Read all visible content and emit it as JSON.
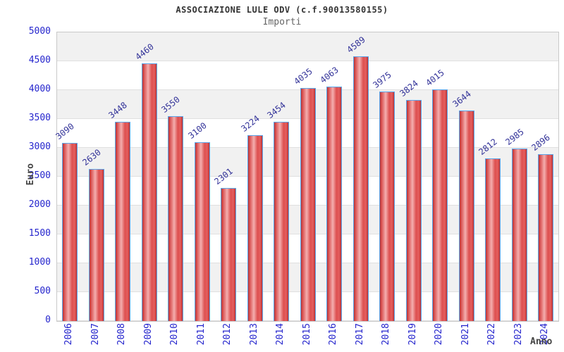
{
  "header": {
    "title": "ASSOCIAZIONE LULE ODV (c.f.90013580155)",
    "subtitle": "Importi"
  },
  "chart_data": {
    "type": "bar",
    "title": "ASSOCIAZIONE LULE ODV (c.f.90013580155)",
    "subtitle": "Importi",
    "xlabel": "Anno",
    "ylabel": "Euro",
    "categories": [
      "2006",
      "2007",
      "2008",
      "2009",
      "2010",
      "2011",
      "2012",
      "2013",
      "2014",
      "2015",
      "2016",
      "2017",
      "2018",
      "2019",
      "2020",
      "2021",
      "2022",
      "2023",
      "2024"
    ],
    "values": [
      3090,
      2630,
      3448,
      4460,
      3550,
      3100,
      2301,
      3224,
      3454,
      4035,
      4063,
      4589,
      3975,
      3824,
      4015,
      3644,
      2812,
      2985,
      2896
    ],
    "ylim": [
      0,
      5000
    ],
    "ytick_step": 500,
    "ytick_labels": [
      "0",
      "500",
      "1000",
      "1500",
      "2000",
      "2500",
      "3000",
      "3500",
      "4000",
      "4500",
      "5000"
    ],
    "grid": "horizontal gridlines every 500 with alternating gray/white bands",
    "legend": "none",
    "bar_labels_shown": true,
    "bar_label_rotation_deg": -38,
    "xtick_rotation_deg": -90
  },
  "colors": {
    "tick_label": "#2525cd",
    "bar_value_label": "#333399",
    "bar_fill_dark": "#b01212",
    "bar_fill_light": "#f2a2a2",
    "bar_border": "#5aa7ec",
    "band_gray": "#f1f1f1",
    "band_white": "#ffffff",
    "gridline": "#e0e0e0",
    "plot_border": "#c9c9c9",
    "title_text": "#333333",
    "subtitle_text": "#666666",
    "axis_label_text": "#444444"
  }
}
